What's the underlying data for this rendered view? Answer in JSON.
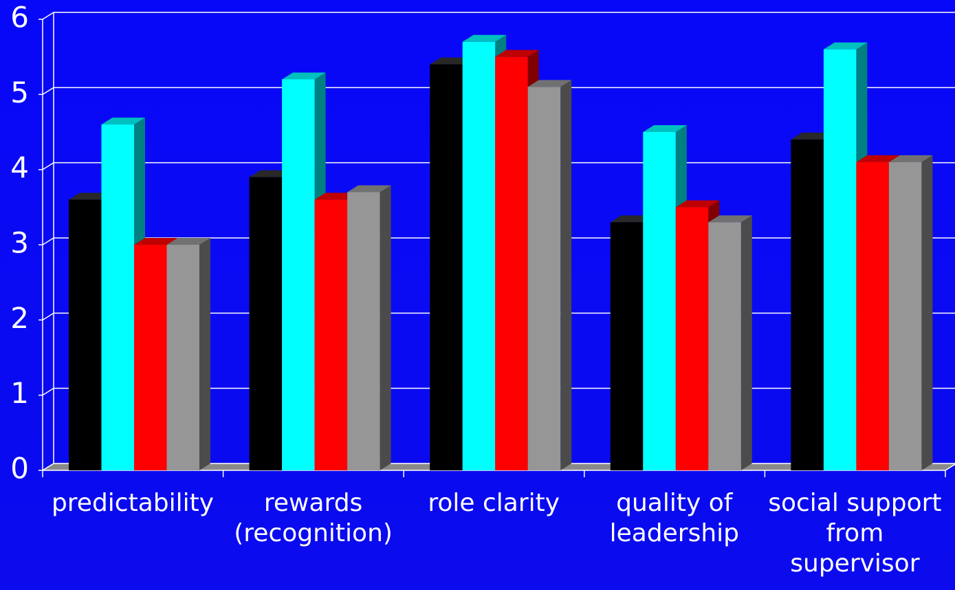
{
  "chart_data": {
    "type": "bar3d",
    "categories": [
      "predictability",
      "rewards (recognition)",
      "role clarity",
      "quality of leadership",
      "social support from supervisor"
    ],
    "series": [
      {
        "color": "#000000",
        "values": [
          3.6,
          3.9,
          5.4,
          3.3,
          4.4
        ]
      },
      {
        "color": "#00ffff",
        "values": [
          4.6,
          5.2,
          5.7,
          4.5,
          5.6
        ]
      },
      {
        "color": "#ff0000",
        "values": [
          3.0,
          3.6,
          5.5,
          3.5,
          4.1
        ]
      },
      {
        "color": "#969696",
        "values": [
          3.0,
          3.7,
          5.1,
          3.3,
          4.1
        ]
      }
    ],
    "ylim": [
      0,
      6
    ],
    "yticks": [
      0,
      1,
      2,
      3,
      4,
      5,
      6
    ],
    "grid": true
  }
}
